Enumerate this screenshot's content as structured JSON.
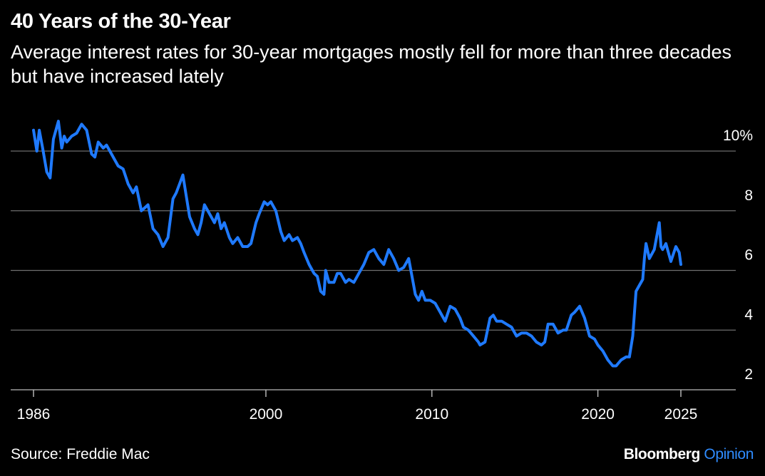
{
  "header": {
    "title": "40 Years of the 30-Year",
    "subtitle": "Average interest rates for 30-year mortgages mostly fell for more than three decades but have increased lately"
  },
  "footer": {
    "source": "Source: Freddie Mac",
    "brand_name": "Bloomberg",
    "brand_suffix": "Opinion"
  },
  "colors": {
    "background": "#000000",
    "line": "#1f7aff",
    "text": "#ffffff",
    "grid": "#6e6e6e",
    "brand_accent": "#2f8cff"
  },
  "chart_data": {
    "type": "line",
    "title": "40 Years of the 30-Year",
    "xlabel": "",
    "ylabel": "",
    "xlim": [
      1985.8,
      2027
    ],
    "ylim": [
      1.5,
      11
    ],
    "x_ticks": [
      1986,
      2000,
      2010,
      2020,
      2025
    ],
    "x_tick_labels": [
      "1986",
      "2000",
      "2010",
      "2020",
      "2025"
    ],
    "y_ticks": [
      2,
      4,
      6,
      8,
      10
    ],
    "y_tick_labels": [
      "2",
      "4",
      "6",
      "8",
      "10%"
    ],
    "grid": "horizontal",
    "y_axis_side": "right",
    "legend": "none",
    "series": [
      {
        "x": [
          1986.0,
          1986.2,
          1986.35,
          1986.55,
          1986.8,
          1987.0,
          1987.2,
          1987.5,
          1987.7,
          1987.85,
          1988.0,
          1988.3,
          1988.6,
          1988.9,
          1989.2,
          1989.35,
          1989.5,
          1989.7,
          1989.9,
          1990.2,
          1990.4,
          1990.6,
          1990.9,
          1991.1,
          1991.4,
          1991.7,
          1992.0,
          1992.2,
          1992.5,
          1992.7,
          1992.9,
          1993.2,
          1993.5,
          1993.8,
          1994.1,
          1994.4,
          1994.6,
          1994.8,
          1995.0,
          1995.2,
          1995.4,
          1995.7,
          1995.9,
          1996.1,
          1996.3,
          1996.6,
          1996.9,
          1997.1,
          1997.3,
          1997.5,
          1997.8,
          1998.0,
          1998.3,
          1998.6,
          1998.9,
          1999.1,
          1999.4,
          1999.6,
          1999.9,
          2000.1,
          2000.3,
          2000.6,
          2000.9,
          2001.1,
          2001.4,
          2001.6,
          2001.9,
          2002.1,
          2002.3,
          2002.6,
          2002.9,
          2003.1,
          2003.3,
          2003.5,
          2003.6,
          2003.8,
          2004.1,
          2004.3,
          2004.5,
          2004.8,
          2005.0,
          2005.3,
          2005.6,
          2005.9,
          2006.2,
          2006.5,
          2006.8,
          2007.1,
          2007.4,
          2007.7,
          2008.0,
          2008.3,
          2008.6,
          2008.9,
          2009.0,
          2009.2,
          2009.4,
          2009.6,
          2009.9,
          2010.2,
          2010.5,
          2010.8,
          2011.1,
          2011.4,
          2011.7,
          2011.9,
          2012.2,
          2012.5,
          2012.8,
          2012.9,
          2013.2,
          2013.5,
          2013.7,
          2013.9,
          2014.2,
          2014.5,
          2014.8,
          2015.1,
          2015.4,
          2015.7,
          2016.0,
          2016.3,
          2016.6,
          2016.8,
          2017.0,
          2017.3,
          2017.6,
          2017.9,
          2018.1,
          2018.4,
          2018.6,
          2018.9,
          2019.2,
          2019.5,
          2019.8,
          2020.0,
          2020.3,
          2020.6,
          2020.9,
          2021.1,
          2021.4,
          2021.7,
          2021.9,
          2022.1,
          2022.3,
          2022.5,
          2022.7,
          2022.8,
          2022.9,
          2023.1,
          2023.4,
          2023.7,
          2023.8,
          2023.9,
          2024.1,
          2024.4,
          2024.7,
          2024.9,
          2025.0
        ],
        "y": [
          10.7,
          10.0,
          10.7,
          10.1,
          9.3,
          9.1,
          10.4,
          11.0,
          10.1,
          10.5,
          10.3,
          10.5,
          10.6,
          10.9,
          10.7,
          10.3,
          9.9,
          9.8,
          10.3,
          10.1,
          10.2,
          10.0,
          9.7,
          9.5,
          9.4,
          8.9,
          8.6,
          8.8,
          8.0,
          8.1,
          8.2,
          7.4,
          7.2,
          6.8,
          7.1,
          8.4,
          8.6,
          8.9,
          9.2,
          8.5,
          7.8,
          7.4,
          7.2,
          7.6,
          8.2,
          7.9,
          7.6,
          7.9,
          7.4,
          7.6,
          7.1,
          6.9,
          7.1,
          6.8,
          6.8,
          6.9,
          7.6,
          7.9,
          8.3,
          8.2,
          8.3,
          8.0,
          7.3,
          7.0,
          7.2,
          7.0,
          7.1,
          6.9,
          6.6,
          6.2,
          5.9,
          5.8,
          5.3,
          5.2,
          6.0,
          5.6,
          5.6,
          5.9,
          5.9,
          5.6,
          5.7,
          5.6,
          5.9,
          6.2,
          6.6,
          6.7,
          6.4,
          6.2,
          6.7,
          6.4,
          6.0,
          6.1,
          6.4,
          5.5,
          5.2,
          5.0,
          5.3,
          5.0,
          5.0,
          4.9,
          4.6,
          4.3,
          4.8,
          4.7,
          4.4,
          4.1,
          4.0,
          3.8,
          3.6,
          3.5,
          3.6,
          4.4,
          4.5,
          4.3,
          4.3,
          4.2,
          4.1,
          3.8,
          3.9,
          3.9,
          3.8,
          3.6,
          3.5,
          3.6,
          4.2,
          4.2,
          3.9,
          4.0,
          4.0,
          4.5,
          4.6,
          4.8,
          4.4,
          3.8,
          3.7,
          3.5,
          3.3,
          3.0,
          2.8,
          2.8,
          3.0,
          3.1,
          3.1,
          3.8,
          5.3,
          5.5,
          5.7,
          6.4,
          6.9,
          6.4,
          6.7,
          7.6,
          6.8,
          6.7,
          6.9,
          6.3,
          6.8,
          6.6,
          6.2
        ]
      }
    ]
  }
}
